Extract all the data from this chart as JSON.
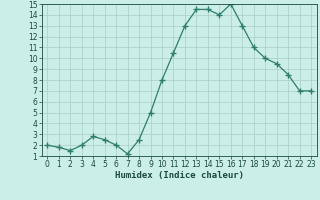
{
  "xlabel": "Humidex (Indice chaleur)",
  "x": [
    0,
    1,
    2,
    3,
    4,
    5,
    6,
    7,
    8,
    9,
    10,
    11,
    12,
    13,
    14,
    15,
    16,
    17,
    18,
    19,
    20,
    21,
    22,
    23
  ],
  "y": [
    2.0,
    1.8,
    1.5,
    2.0,
    2.8,
    2.5,
    2.0,
    1.2,
    2.5,
    5.0,
    8.0,
    10.5,
    13.0,
    14.5,
    14.5,
    14.0,
    15.0,
    13.0,
    11.0,
    10.0,
    9.5,
    8.5,
    7.0,
    7.0
  ],
  "line_color": "#2e7d6e",
  "marker": "+",
  "marker_size": 4,
  "bg_color": "#cceee8",
  "grid_color": "#aaccc6",
  "ylim": [
    1,
    15
  ],
  "xlim": [
    -0.5,
    23.5
  ],
  "yticks": [
    1,
    2,
    3,
    4,
    5,
    6,
    7,
    8,
    9,
    10,
    11,
    12,
    13,
    14,
    15
  ],
  "xticks": [
    0,
    1,
    2,
    3,
    4,
    5,
    6,
    7,
    8,
    9,
    10,
    11,
    12,
    13,
    14,
    15,
    16,
    17,
    18,
    19,
    20,
    21,
    22,
    23
  ],
  "tick_label_fontsize": 5.5,
  "xlabel_fontsize": 6.5,
  "axis_label_color": "#1a4a40",
  "linewidth": 0.9
}
